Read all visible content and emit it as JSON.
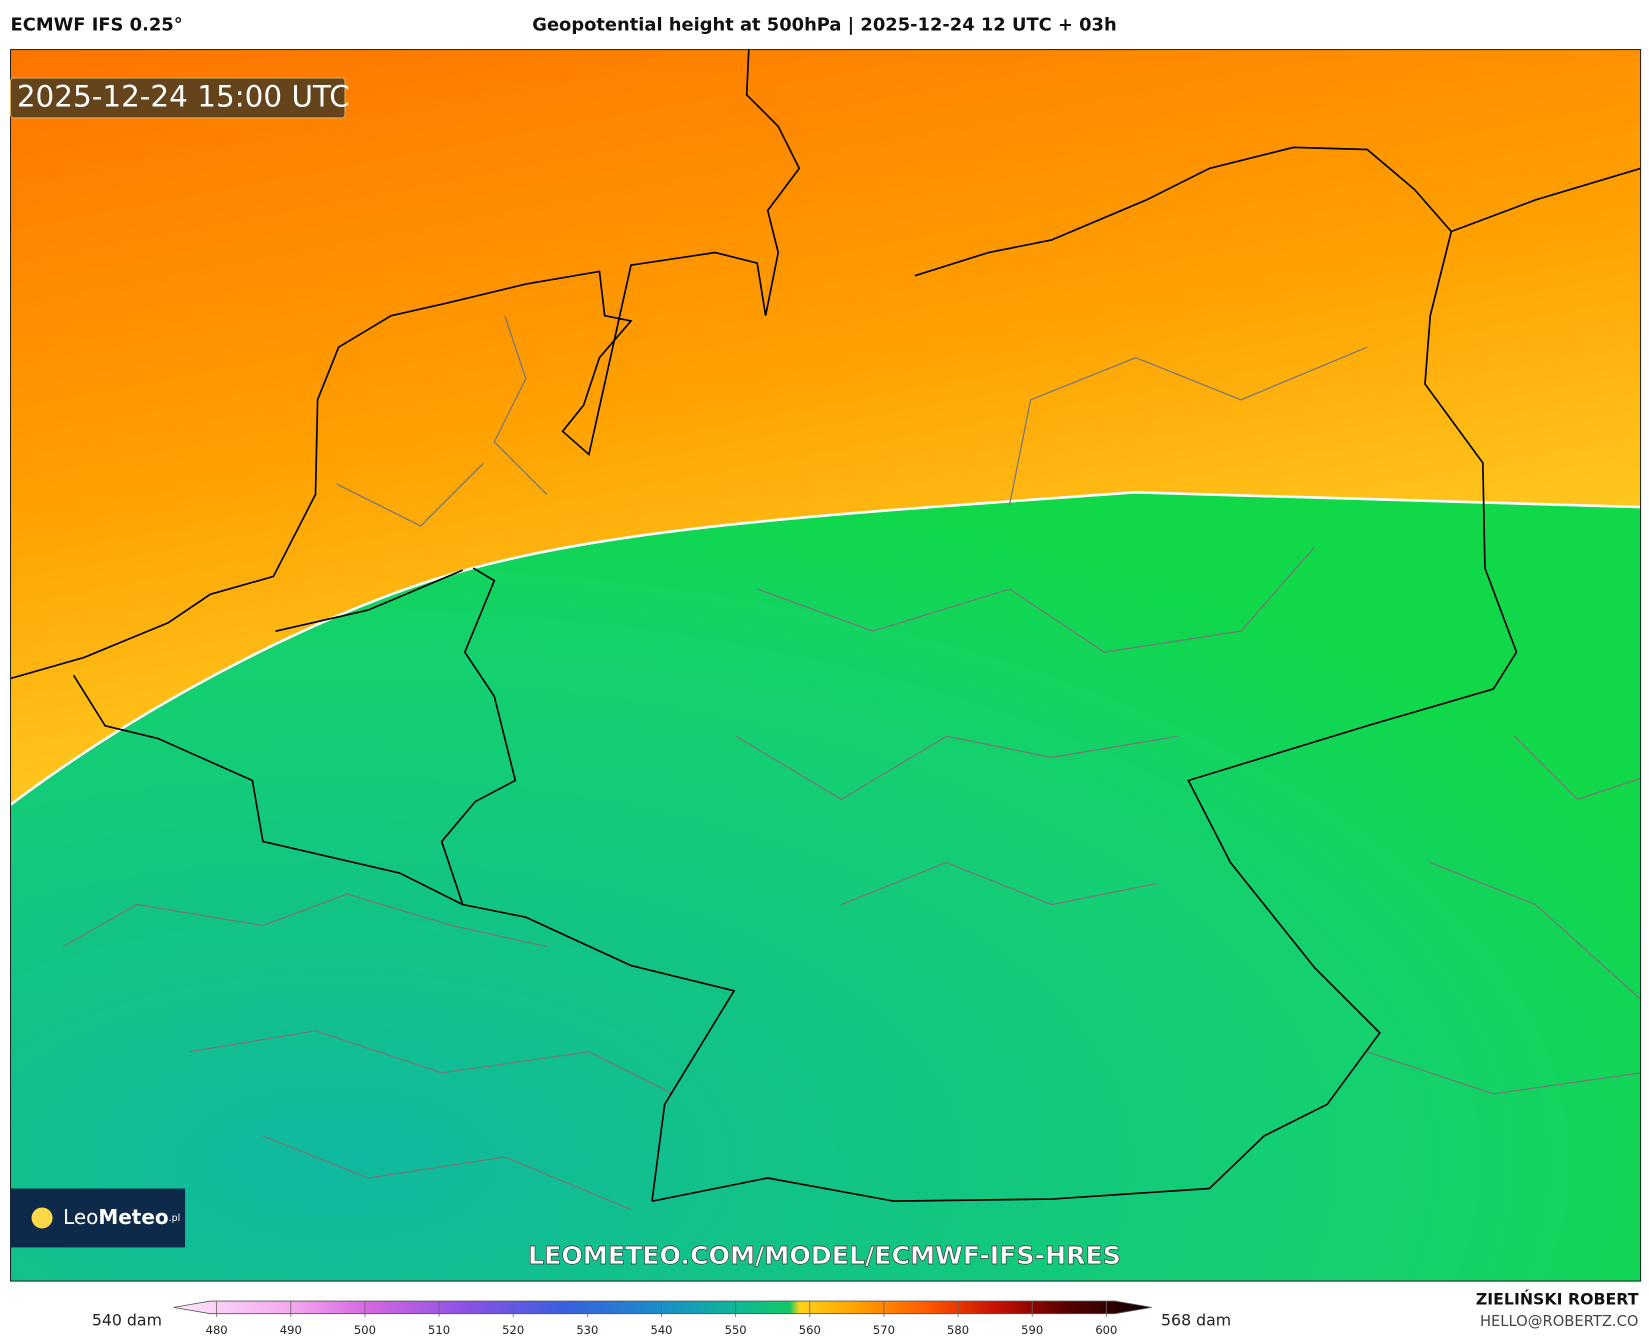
{
  "header": {
    "model": "ECMWF IFS 0.25°",
    "title": "Geopotential height at 500hPa | 2025-12-24 12 UTC + 03h"
  },
  "map": {
    "valid_time": "2025-12-24 15:00 UTC",
    "watermark": "LEOMETEO.COM/MODEL/ECMWF-IFS-HRES",
    "logo": {
      "part1": "Leo",
      "part2": "Meteo",
      "suffix": ".pl"
    }
  },
  "colorbar": {
    "min_label": "540 dam",
    "max_label": "568 dam",
    "ticks": [
      480,
      490,
      500,
      510,
      520,
      530,
      540,
      550,
      560,
      570,
      580,
      590,
      600
    ]
  },
  "footer": {
    "author": "ZIELIŃSKI ROBERT",
    "email": "HELLO@ROBERTZ.CO"
  }
}
